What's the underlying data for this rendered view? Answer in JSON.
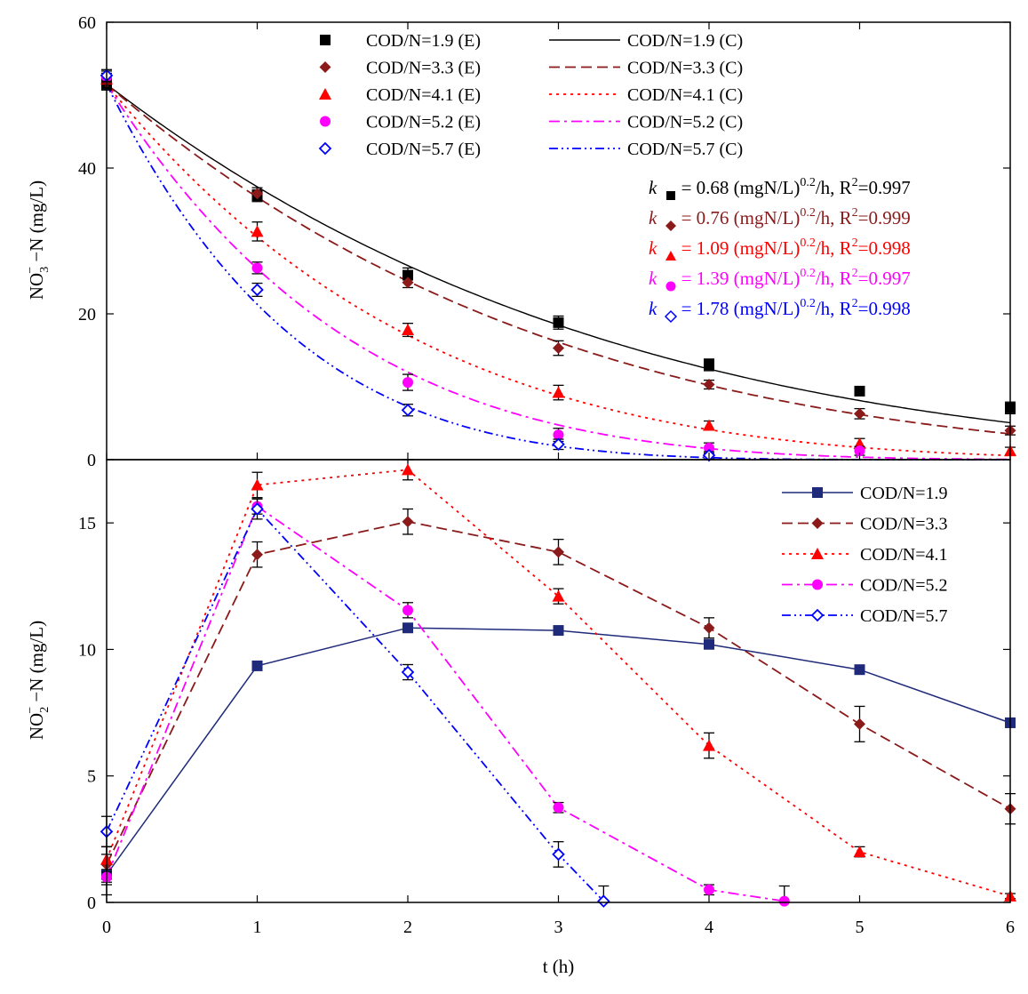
{
  "chart_data": [
    {
      "type": "scatter",
      "panel": "top",
      "ylabel_main": "NO",
      "ylabel_sub": "3",
      "ylabel_sup": "−",
      "ylabel_rest": " −N (mg/L)",
      "xlim": [
        0,
        6
      ],
      "ylim": [
        0,
        60
      ],
      "yticks": [
        "0",
        "20",
        "40",
        "60"
      ],
      "grid": false,
      "legend_position": "top",
      "series": [
        {
          "name": "COD/N=1.9 (E)",
          "color": "#000000",
          "marker": "square",
          "x": [
            0,
            1,
            2,
            3,
            4,
            5,
            6
          ],
          "y": [
            51.5,
            36.2,
            25.3,
            18.8,
            13.0,
            9.4,
            7.1
          ],
          "err": [
            0.8,
            0.8,
            1.0,
            0.9,
            0.8,
            0.6,
            0.8
          ]
        },
        {
          "name": "COD/N=3.3 (E)",
          "color": "#8b1a1a",
          "marker": "diamond",
          "x": [
            0,
            1,
            2,
            3,
            4,
            5,
            6
          ],
          "y": [
            51.8,
            36.5,
            24.3,
            15.3,
            10.3,
            6.3,
            4.0
          ],
          "err": [
            0.8,
            0.8,
            0.7,
            1.0,
            0.6,
            0.7,
            0.6
          ]
        },
        {
          "name": "COD/N=4.1 (E)",
          "color": "#ff0000",
          "marker": "triangle",
          "x": [
            0,
            1,
            2,
            3,
            4,
            5,
            6
          ],
          "y": [
            52.2,
            31.3,
            17.8,
            9.2,
            4.7,
            2.2,
            1.2
          ],
          "err": [
            0.8,
            1.3,
            0.9,
            1.0,
            0.6,
            0.7,
            0.5
          ]
        },
        {
          "name": "COD/N=5.2 (E)",
          "color": "#ff00ff",
          "marker": "circle",
          "x": [
            0,
            1,
            2,
            3,
            4,
            5
          ],
          "y": [
            52.5,
            26.3,
            10.6,
            3.4,
            1.6,
            1.2
          ],
          "err": [
            0.8,
            0.8,
            1.1,
            0.9,
            0.7,
            0.6
          ]
        },
        {
          "name": "COD/N=5.7 (E)",
          "color": "#0000ff",
          "marker": "open-diamond",
          "x": [
            0,
            1,
            2,
            3,
            4
          ],
          "y": [
            52.7,
            23.3,
            6.8,
            2.1,
            0.6
          ],
          "err": [
            0.8,
            0.9,
            0.8,
            0.7,
            0.5
          ]
        },
        {
          "name": "COD/N=1.9 (C)",
          "color": "#000000",
          "line": "solid",
          "k": 0.68,
          "y0": 51.5
        },
        {
          "name": "COD/N=3.3 (C)",
          "color": "#8b1a1a",
          "line": "dash",
          "k": 0.76,
          "y0": 51.5
        },
        {
          "name": "COD/N=4.1 (C)",
          "color": "#ff0000",
          "line": "dot",
          "k": 1.09,
          "y0": 51.5
        },
        {
          "name": "COD/N=5.2 (C)",
          "color": "#ff00ff",
          "line": "dashdot",
          "k": 1.39,
          "y0": 51.5
        },
        {
          "name": "COD/N=5.7 (C)",
          "color": "#0000ff",
          "line": "dashdotdot",
          "k": 1.78,
          "y0": 51.5
        }
      ],
      "annotations": [
        {
          "k": "k",
          "eq": " =  0.68  (mgN/L)",
          "sup": "0.2",
          "after": "/h, R",
          "r2sup": "2",
          "r2": "=0.997",
          "color": "#000000",
          "marker": "square"
        },
        {
          "k": "k",
          "eq": " =  0.76  (mgN/L)",
          "sup": "0.2",
          "after": "/h, R",
          "r2sup": "2",
          "r2": "=0.999",
          "color": "#8b1a1a",
          "marker": "diamond"
        },
        {
          "k": "k",
          "eq": " =  1.09  (mgN/L)",
          "sup": "0.2",
          "after": "/h, R",
          "r2sup": "2",
          "r2": "=0.998",
          "color": "#ff0000",
          "marker": "triangle"
        },
        {
          "k": "k",
          "eq": " = 1.39  (mgN/L)",
          "sup": "0.2",
          "after": "/h, R",
          "r2sup": "2",
          "r2": "=0.997",
          "color": "#ff00ff",
          "marker": "circle"
        },
        {
          "k": "k",
          "eq": " =  1.78  (mgN/L)",
          "sup": "0.2",
          "after": "/h, R",
          "r2sup": "2",
          "r2": "=0.998",
          "color": "#0000ff",
          "marker": "open-diamond"
        }
      ]
    },
    {
      "type": "line",
      "panel": "bottom",
      "ylabel_main": "NO",
      "ylabel_sub": "2",
      "ylabel_sup": "−",
      "ylabel_rest": " −N (mg/L)",
      "xlabel": "t (h)",
      "xlim": [
        0,
        6
      ],
      "ylim": [
        0,
        17.5
      ],
      "xticks": [
        "0",
        "1",
        "2",
        "3",
        "4",
        "5",
        "6"
      ],
      "yticks": [
        "0",
        "5",
        "10",
        "15"
      ],
      "grid": false,
      "legend_position": "top-right",
      "series": [
        {
          "name": "COD/N=1.9",
          "color": "#1f2a7a",
          "marker": "square",
          "line": "solid",
          "x": [
            0,
            1,
            2,
            3,
            4,
            5,
            6
          ],
          "y": [
            1.1,
            9.35,
            10.85,
            10.75,
            10.2,
            9.2,
            7.1
          ],
          "err": [
            0.8,
            0,
            0,
            0,
            0,
            0,
            0
          ]
        },
        {
          "name": "COD/N=3.3",
          "color": "#8b1a1a",
          "marker": "diamond",
          "line": "dash",
          "x": [
            0,
            1,
            2,
            3,
            4,
            5,
            6
          ],
          "y": [
            1.5,
            13.75,
            15.05,
            13.85,
            10.85,
            7.05,
            3.7
          ],
          "err": [
            0.7,
            0.5,
            0.5,
            0.5,
            0.4,
            0.7,
            0.6
          ]
        },
        {
          "name": "COD/N=4.1",
          "color": "#ff0000",
          "marker": "triangle",
          "line": "dot",
          "x": [
            0,
            1,
            2,
            3,
            4,
            5,
            6
          ],
          "y": [
            1.7,
            16.5,
            17.1,
            12.1,
            6.2,
            2.0,
            0.25
          ],
          "err": [
            0.5,
            0.5,
            0.4,
            0.3,
            0.5,
            0.2,
            0.1
          ]
        },
        {
          "name": "COD/N=5.2",
          "color": "#ff00ff",
          "marker": "circle",
          "line": "dashdot",
          "x": [
            0,
            1,
            2,
            3,
            4,
            4.5
          ],
          "y": [
            1.0,
            15.65,
            11.55,
            3.75,
            0.5,
            0.05
          ],
          "err": [
            0.3,
            0.3,
            0.3,
            0.2,
            0.2,
            0.6
          ]
        },
        {
          "name": "COD/N=5.7",
          "color": "#0000ff",
          "marker": "open-diamond",
          "line": "dashdotdot",
          "x": [
            0,
            1,
            2,
            3,
            3.3
          ],
          "y": [
            2.8,
            15.55,
            9.1,
            1.9,
            0.05
          ],
          "err": [
            0.6,
            0.4,
            0.3,
            0.5,
            0.6
          ]
        }
      ]
    }
  ]
}
